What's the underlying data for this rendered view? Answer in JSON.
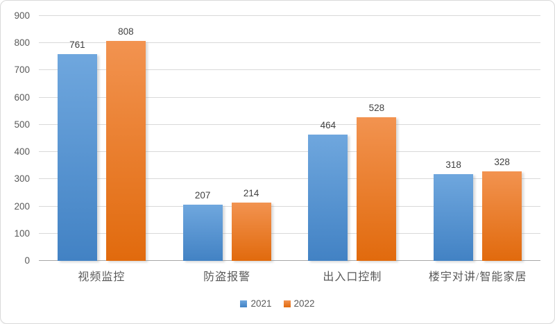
{
  "chart_data": {
    "type": "bar",
    "categories": [
      "视频监控",
      "防盗报警",
      "出入口控制",
      "楼宇对讲/智能家居"
    ],
    "series": [
      {
        "name": "2021",
        "color": "#5B9BD5",
        "gradient_top": "#6FA7DE",
        "gradient_bottom": "#4282C4",
        "values": [
          761,
          207,
          464,
          318
        ]
      },
      {
        "name": "2022",
        "color": "#ED7D31",
        "gradient_top": "#F29350",
        "gradient_bottom": "#E16A0D",
        "values": [
          808,
          214,
          528,
          328
        ]
      }
    ],
    "y_axis": {
      "min": 0,
      "max": 900,
      "step": 100,
      "ticks": [
        0,
        100,
        200,
        300,
        400,
        500,
        600,
        700,
        800,
        900
      ]
    },
    "data_labels": true,
    "grid": true,
    "legend_position": "bottom"
  },
  "colors": {
    "background": "#FFFFFF",
    "frame_border": "#D9D9D9",
    "gridline": "#D9D9D9",
    "axis_line": "#A6A6A6",
    "axis_tick_label": "#595959",
    "category_label": "#595959",
    "data_label": "#404040",
    "legend_label": "#595959"
  }
}
